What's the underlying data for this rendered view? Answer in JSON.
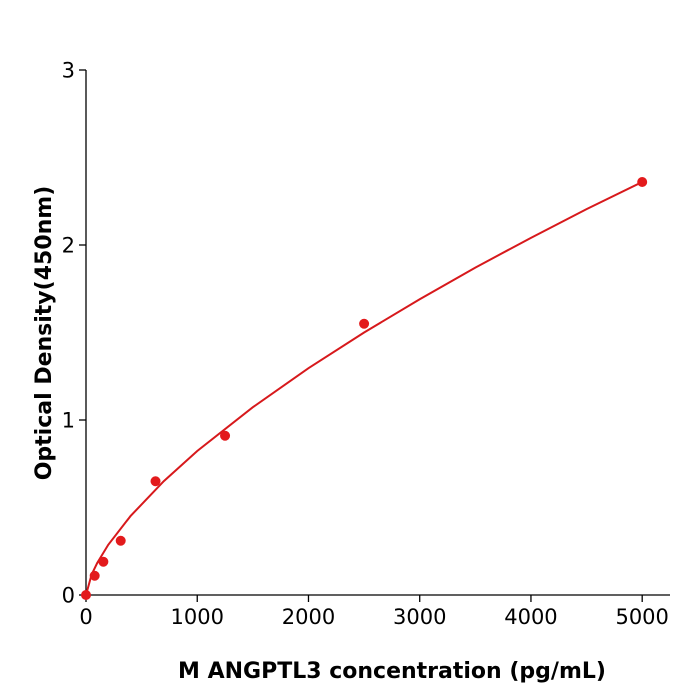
{
  "chart_data": {
    "type": "scatter",
    "x_label": "M  ANGPTL3 concentration (pg/mL)",
    "y_label": "Optical Density(450nm)",
    "xlim": [
      0,
      5250
    ],
    "ylim": [
      0,
      3
    ],
    "xticks": [
      0,
      1000,
      2000,
      3000,
      4000,
      5000
    ],
    "yticks": [
      0,
      1,
      2,
      3
    ],
    "series": [
      {
        "type": "scatter",
        "color": "#e31a1c",
        "x": [
          0,
          78,
          156,
          312,
          625,
          1250,
          2500,
          5000
        ],
        "values": [
          0.0,
          0.11,
          0.19,
          0.31,
          0.65,
          0.91,
          1.55,
          2.36
        ]
      },
      {
        "type": "line",
        "color": "#d7191c",
        "x": [
          0,
          50,
          100,
          200,
          400,
          700,
          1000,
          1500,
          2000,
          2500,
          3000,
          3500,
          4000,
          4500,
          5000
        ],
        "values": [
          0.0,
          0.116,
          0.182,
          0.287,
          0.451,
          0.651,
          0.823,
          1.073,
          1.296,
          1.5,
          1.69,
          1.871,
          2.041,
          2.205,
          2.36
        ]
      }
    ]
  }
}
